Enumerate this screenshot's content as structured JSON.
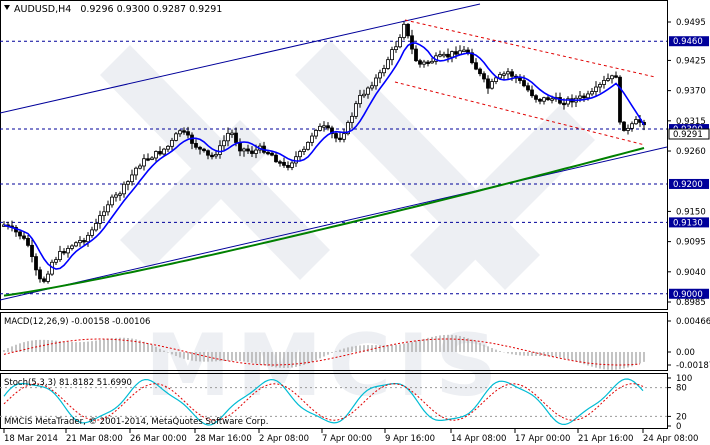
{
  "header": {
    "symbol_timeframe": "AUDUSD,H4",
    "ohlc": "0.9296 0.9300 0.9287 0.9291"
  },
  "price_axis": {
    "ticks": [
      "0.9495",
      "0.9425",
      "0.9370",
      "0.9315",
      "0.9260",
      "0.9150",
      "0.9095",
      "0.9040",
      "0.8985"
    ],
    "levels": [
      {
        "value": "0.9460",
        "price": 0.946
      },
      {
        "value": "0.9300",
        "price": 0.93
      },
      {
        "value": "0.9200",
        "price": 0.92
      },
      {
        "value": "0.9130",
        "price": 0.913
      },
      {
        "value": "0.9000",
        "price": 0.9
      }
    ],
    "current_price_label": "0.9291",
    "current_price": 0.9291
  },
  "macd": {
    "title": "MACD(12,26,9) -0.00158 -0.00106",
    "ticks": [
      "0.00466",
      "0.00",
      "-0.00187"
    ]
  },
  "stoch": {
    "title": "Stoch(5,3,3) 81.8182 51.6990",
    "ticks": [
      "100",
      "80",
      "20",
      "0"
    ]
  },
  "footer": {
    "copyright": "MMCIS MetaTrader, © 2001-2014, MetaQuotes Software Corp."
  },
  "time_axis": {
    "labels": [
      "18 Mar 2014",
      "21 Mar 08:00",
      "26 Mar 00:00",
      "28 Mar 16:00",
      "2 Apr 08:00",
      "7 Apr 00:00",
      "9 Apr 16:00",
      "14 Apr 08:00",
      "17 Apr 00:00",
      "21 Apr 16:00",
      "24 Apr 08:00"
    ]
  },
  "watermark": "MMCIS",
  "colors": {
    "candles": "#000000",
    "ma_fast": "#0000ff",
    "ma_mid": "#e00000",
    "ma_slow": "#008000",
    "channel": "#00009a",
    "down_channel": "#e00000",
    "levels": "#00009a",
    "macd_hist": "#b0b0b0",
    "macd_signal": "#e00000",
    "stoch_main": "#00bcd4",
    "stoch_signal": "#e00000"
  }
}
